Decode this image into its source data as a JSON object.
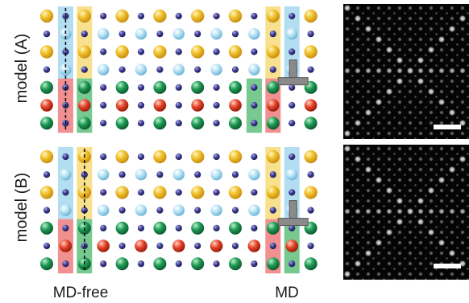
{
  "figure": {
    "model_a_label": "model (A)",
    "model_b_label": "model (B)",
    "md_free_label": "MD-free",
    "md_label": "MD"
  },
  "legend_colors": {
    "yellow_atom": "#f3c431",
    "light_blue_atom": "#a9dcf0",
    "small_navy_atom": "#3c3a8f",
    "green_atom": "#1e9a55",
    "red_atom": "#e5452a",
    "yellow_highlight": "#f6dc7a",
    "blue_highlight": "#a6d8ee",
    "green_highlight": "#5fbf7d",
    "red_highlight": "#ee7c7c",
    "dislocation_symbol": "#8a8a8a"
  },
  "icons": {
    "dislocation": "dislocation-t-icon",
    "scale": "scale-bar-icon"
  }
}
